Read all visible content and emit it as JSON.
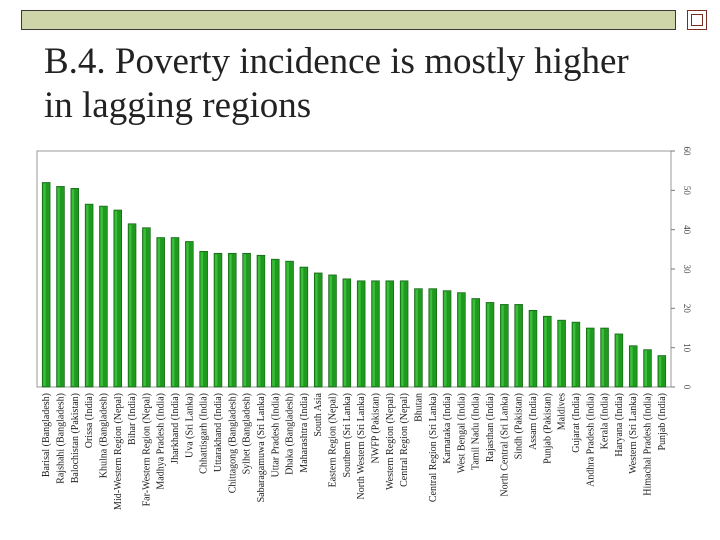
{
  "slide": {
    "title_line1": "B.4. Poverty incidence is mostly higher",
    "title_line2": "in lagging regions"
  },
  "colors": {
    "topbar": "#cfd4a9",
    "corner_accent": "#7a2b22",
    "bar_fill": "#1f9a1f",
    "bar_highlight": "#3bbf3b",
    "bar_edge": "#0e5a0e"
  },
  "chart_data": {
    "type": "bar",
    "orientation": "vertical",
    "title": "",
    "xlabel": "",
    "ylabel": "",
    "ylim": [
      0,
      60
    ],
    "yticks": [
      0,
      10,
      20,
      30,
      40,
      50,
      60
    ],
    "grid": false,
    "legend": "none",
    "y_axis_side": "right",
    "categories": [
      "Barisal (Bangladesh)",
      "Rajshahi (Bangladesh)",
      "Balochistan (Pakistan)",
      "Orissa (India)",
      "Khulna (Bangladesh)",
      "Mid-Western Region (Nepal)",
      "Bihar (India)",
      "Far-Western Region (Nepal)",
      "Madhya Pradesh (India)",
      "Jharkhand (India)",
      "Uva (Sri Lanka)",
      "Chhattisgarh (India)",
      "Uttarakhand (India)",
      "Chittagong (Bangladesh)",
      "Sylhet (Bangladesh)",
      "Sabaragamuwa (Sri Lanka)",
      "Uttar Pradesh (India)",
      "Dhaka (Bangladesh)",
      "Maharashtra (India)",
      "South Asia",
      "Eastern Region (Nepal)",
      "Southern (Sri Lanka)",
      "North Western (Sri Lanka)",
      "NWFP (Pakistan)",
      "Western Region (Nepal)",
      "Central Region (Nepal)",
      "Bhutan",
      "Central Region (Sri Lanka)",
      "Karnataka (India)",
      "West Bengal (India)",
      "Tamil Nadu (India)",
      "Rajasthan (India)",
      "North Central (Sri Lanka)",
      "Sindh (Pakistan)",
      "Assam (India)",
      "Punjab (Pakistan)",
      "Maldives",
      "Gujarat (India)",
      "Andhra Pradesh (India)",
      "Kerala (India)",
      "Haryana (India)",
      "Western (Sri Lanka)",
      "Himachal Pradesh (India)",
      "Punjab (India)"
    ],
    "values": [
      52.0,
      51.0,
      50.5,
      46.5,
      46.0,
      45.0,
      41.5,
      40.5,
      38.0,
      38.0,
      37.0,
      34.5,
      34.0,
      34.0,
      34.0,
      33.5,
      32.5,
      32.0,
      30.5,
      29.0,
      28.5,
      27.5,
      27.0,
      27.0,
      27.0,
      27.0,
      25.0,
      25.0,
      24.5,
      24.0,
      22.5,
      21.5,
      21.0,
      21.0,
      19.5,
      18.0,
      17.0,
      16.5,
      15.0,
      15.0,
      13.5,
      10.5,
      9.5,
      8.0
    ]
  }
}
